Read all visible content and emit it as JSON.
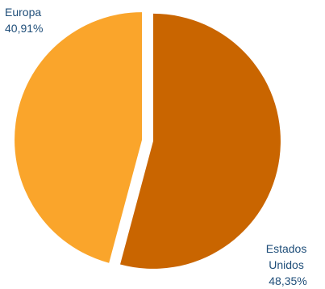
{
  "chart_data": {
    "type": "pie",
    "title": "",
    "slices": [
      {
        "label": "Estados Unidos",
        "label_lines": [
          "Estados",
          "Unidos"
        ],
        "value_text": "48,35%",
        "value": 48.35,
        "color": "#c96500"
      },
      {
        "label": "Europa",
        "label_lines": [
          "Europa"
        ],
        "value_text": "40,91%",
        "value": 40.91,
        "color": "#faa52b"
      }
    ],
    "label_color": "#1f4e79"
  }
}
